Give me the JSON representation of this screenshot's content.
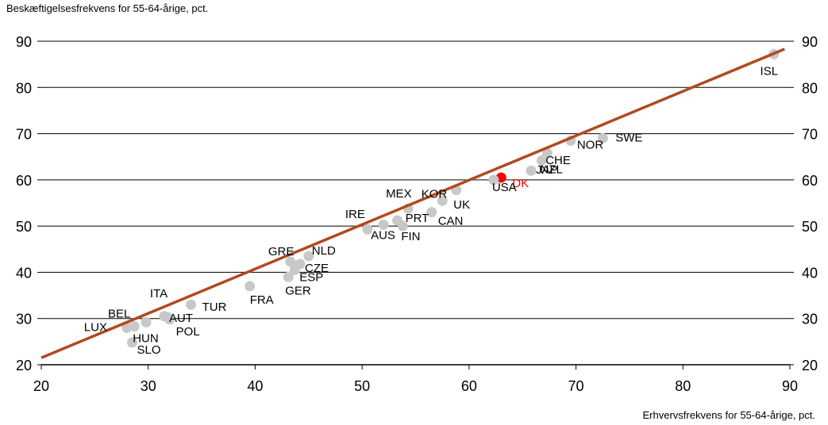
{
  "chart_data": {
    "type": "scatter",
    "ylabel": "Beskæftigelsesfrekvens for 55-64-årige, pct.",
    "xlabel": "Erhvervsfrekvens for 55-64-årige, pct.",
    "xlim": [
      20,
      90
    ],
    "ylim": [
      20,
      90
    ],
    "xticks": [
      "20",
      "30",
      "40",
      "50",
      "60",
      "70",
      "80",
      "90"
    ],
    "yticks": [
      "20",
      "30",
      "40",
      "50",
      "60",
      "70",
      "80",
      "90"
    ],
    "grid": "horizontal",
    "colors": {
      "point": "#c8c8c8",
      "highlight": "#ff0000",
      "line": "#b04a1e",
      "label": "#000000"
    },
    "trendline": {
      "x": [
        20,
        89.5
      ],
      "y": [
        21.5,
        88.3
      ]
    },
    "points": [
      {
        "label": "ISL",
        "x": 88.5,
        "y": 87.2
      },
      {
        "label": "SWE",
        "x": 72.5,
        "y": 69.0
      },
      {
        "label": "NOR",
        "x": 69.5,
        "y": 68.5
      },
      {
        "label": "CHE",
        "x": 67.3,
        "y": 65.8
      },
      {
        "label": "NZL",
        "x": 66.8,
        "y": 64.2
      },
      {
        "label": "JAP",
        "x": 65.8,
        "y": 62.0
      },
      {
        "label": "DK",
        "x": 63.0,
        "y": 60.5,
        "highlight": true
      },
      {
        "label": "USA",
        "x": 62.3,
        "y": 60.0
      },
      {
        "label": "KOR",
        "x": 58.8,
        "y": 57.8
      },
      {
        "label": "UK",
        "x": 57.5,
        "y": 55.5
      },
      {
        "label": "MEX",
        "x": 54.3,
        "y": 53.8
      },
      {
        "label": "CAN",
        "x": 56.5,
        "y": 53.0
      },
      {
        "label": "PRT",
        "x": 53.3,
        "y": 51.2
      },
      {
        "label": "FIN",
        "x": 53.8,
        "y": 50.0
      },
      {
        "label": "AUS",
        "x": 52.0,
        "y": 50.3
      },
      {
        "label": "IRE",
        "x": 50.5,
        "y": 49.3
      },
      {
        "label": "NLD",
        "x": 45.0,
        "y": 43.5
      },
      {
        "label": "GRE",
        "x": 43.3,
        "y": 42.3
      },
      {
        "label": "CZE",
        "x": 44.2,
        "y": 41.8
      },
      {
        "label": "ESP",
        "x": 43.7,
        "y": 40.5
      },
      {
        "label": "GER",
        "x": 43.1,
        "y": 39.0
      },
      {
        "label": "FRA",
        "x": 39.5,
        "y": 37.0
      },
      {
        "label": "TUR",
        "x": 34.0,
        "y": 33.0
      },
      {
        "label": "ITA",
        "x": 31.5,
        "y": 30.5
      },
      {
        "label": "AUT",
        "x": 31.8,
        "y": 30.3
      },
      {
        "label": "BEL",
        "x": 29.8,
        "y": 29.2
      },
      {
        "label": "HUN",
        "x": 28.7,
        "y": 28.3
      },
      {
        "label": "POL",
        "x": 32.0,
        "y": 29.8
      },
      {
        "label": "LUX",
        "x": 28.0,
        "y": 28.0
      },
      {
        "label": "SLO",
        "x": 28.5,
        "y": 24.8
      }
    ]
  }
}
